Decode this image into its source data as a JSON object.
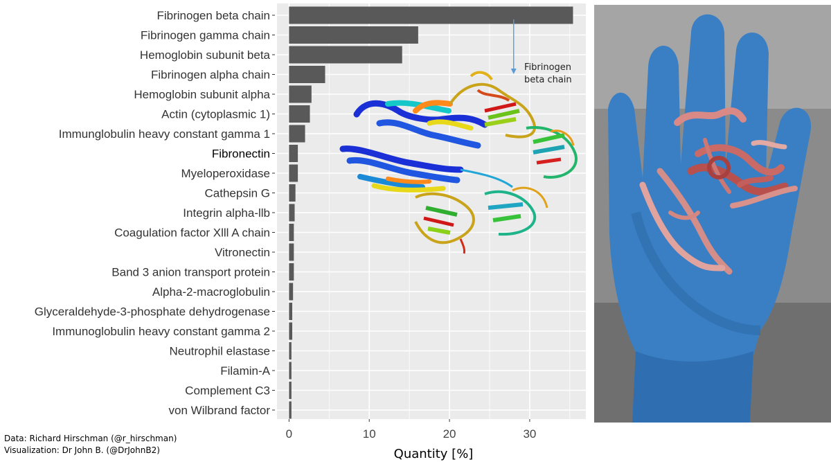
{
  "chart_data": {
    "type": "bar",
    "orientation": "horizontal",
    "categories": [
      "Fibrinogen beta chain",
      "Fibrinogen gamma chain",
      "Hemoglobin subunit beta",
      "Fibrinogen alpha chain",
      "Hemoglobin subunit alpha",
      "Actin (cytoplasmic 1)",
      "Immunglobulin heavy constant gamma 1",
      "Fibronectin",
      "Myeloperoxidase",
      "Cathepsin G",
      "Integrin alpha-llb",
      "Coagulation factor Xlll A chain",
      "Vitronectin",
      "Band 3 anion transport protein",
      "Alpha-2-macroglobulin",
      "Glyceraldehyde-3-phosphate dehydrogenase",
      "Immunoglobulin heavy constant gamma 2",
      "Neutrophil elastase",
      "Filamin-A",
      "Complement C3",
      "von Wilbrand factor"
    ],
    "values": [
      35.4,
      16.1,
      14.1,
      4.5,
      2.8,
      2.6,
      2.0,
      1.1,
      1.1,
      0.8,
      0.7,
      0.6,
      0.6,
      0.6,
      0.5,
      0.4,
      0.4,
      0.3,
      0.3,
      0.3,
      0.3
    ],
    "xlabel": "Quantity [%]",
    "ylabel": "",
    "xlim": [
      -1.5,
      37
    ],
    "x_ticks": [
      0,
      10,
      20,
      30
    ],
    "grid": true,
    "bar_color": "#595959",
    "panel_background": "#ebebeb",
    "annotation": {
      "text_lines": [
        "Fibrinogen",
        "beta chain"
      ],
      "arrow_x": 28
    }
  },
  "credits": {
    "data_line": "Data: Richard Hirschman (@r_hirschman)",
    "visualization_line": "Visualization: Dr John B. (@DrJohnB2)"
  },
  "photo": {
    "glove_color": "#3a7fc4",
    "background_color": "#8a8a8a"
  }
}
